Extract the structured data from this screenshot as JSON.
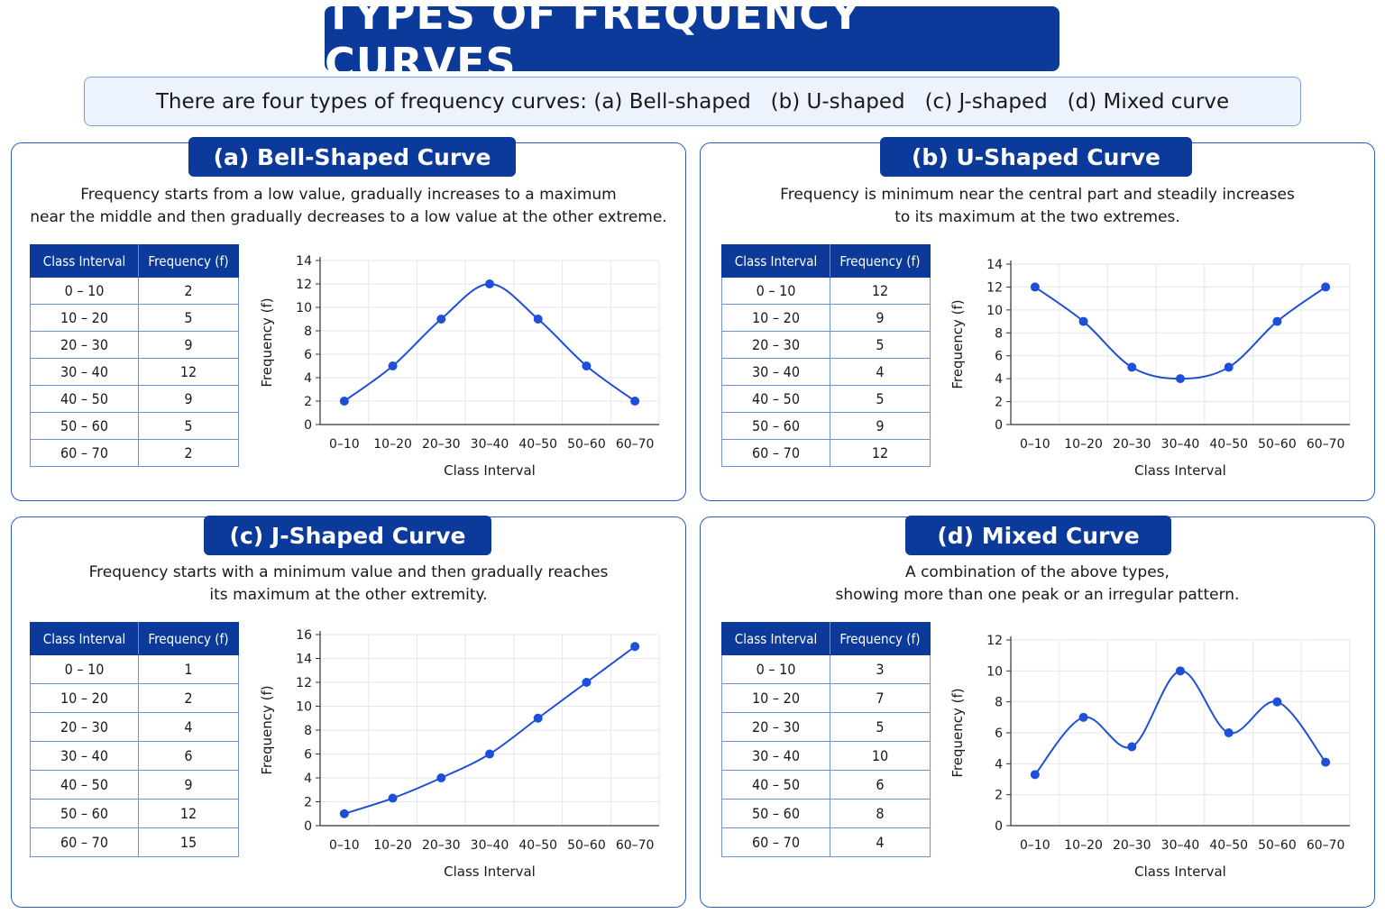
{
  "title": "TYPES OF FREQUENCY CURVES",
  "intro": "There are four types of frequency curves: (a) Bell-shaped   (b) U-shaped   (c) J-shaped   (d) Mixed curve",
  "colors": {
    "accent": "#0b3a9a",
    "line": "#1d4fd8",
    "border": "#2a5bc4",
    "grid": "#e3e6ec"
  },
  "table_headers": {
    "interval": "Class Interval",
    "frequency": "Frequency (f)"
  },
  "table_intervals": [
    "0 – 10",
    "10 – 20",
    "20 – 30",
    "30 – 40",
    "40 – 50",
    "50 – 60",
    "60 – 70"
  ],
  "panels": [
    {
      "title": "(a)  Bell-Shaped Curve",
      "desc": [
        "Frequency starts from a low value, gradually increases to a maximum",
        "near the middle and then gradually decreases to a low value at the other extreme."
      ],
      "frequencies": [
        "2",
        "5",
        "9",
        "12",
        "9",
        "5",
        "2"
      ]
    },
    {
      "title": "(b)  U-Shaped Curve",
      "desc": [
        "Frequency is minimum near the central part and steadily increases",
        "to its maximum at the two extremes."
      ],
      "frequencies": [
        "12",
        "9",
        "5",
        "4",
        "5",
        "9",
        "12"
      ]
    },
    {
      "title": "(c)  J-Shaped Curve",
      "desc": [
        "Frequency starts with a minimum value and then gradually reaches",
        "its maximum at the other extremity."
      ],
      "frequencies": [
        "1",
        "2",
        "4",
        "6",
        "9",
        "12",
        "15"
      ]
    },
    {
      "title": "(d)  Mixed Curve",
      "desc": [
        "A combination of the above types,",
        "showing more than one peak or an irregular pattern."
      ],
      "frequencies": [
        "3",
        "7",
        "5",
        "10",
        "6",
        "8",
        "4"
      ]
    }
  ],
  "chart_data": [
    {
      "type": "line",
      "categories": [
        "0–10",
        "10–20",
        "20–30",
        "30–40",
        "40–50",
        "50–60",
        "60–70"
      ],
      "values": [
        2,
        5,
        9,
        12,
        9,
        5,
        2
      ],
      "xlabel": "Class Interval",
      "ylabel": "Frequency (f)",
      "ylim": [
        0,
        14
      ],
      "yticks": [
        0,
        2,
        4,
        6,
        8,
        10,
        12,
        14
      ],
      "grid": true
    },
    {
      "type": "line",
      "categories": [
        "0–10",
        "10–20",
        "20–30",
        "30–40",
        "40–50",
        "50–60",
        "60–70"
      ],
      "values": [
        12,
        9,
        5,
        4,
        5,
        9,
        12
      ],
      "xlabel": "Class Interval",
      "ylabel": "Frequency (f)",
      "ylim": [
        0,
        14
      ],
      "yticks": [
        0,
        2,
        4,
        6,
        8,
        10,
        12,
        14
      ],
      "grid": true
    },
    {
      "type": "line",
      "categories": [
        "0–10",
        "10–20",
        "20–30",
        "30–40",
        "40–50",
        "50–60",
        "60–70"
      ],
      "values": [
        1,
        2.3,
        4,
        6,
        9,
        12,
        15
      ],
      "xlabel": "Class Interval",
      "ylabel": "Frequency (f)",
      "ylim": [
        0,
        16
      ],
      "yticks": [
        0,
        2,
        4,
        6,
        8,
        10,
        12,
        14,
        16
      ],
      "grid": true
    },
    {
      "type": "line",
      "categories": [
        "0–10",
        "10–20",
        "20–30",
        "30–40",
        "40–50",
        "50–60",
        "60–70"
      ],
      "values": [
        3.3,
        7,
        5.1,
        10,
        6,
        8,
        4.1
      ],
      "xlabel": "Class Interval",
      "ylabel": "Frequency (f)",
      "ylim": [
        0,
        12
      ],
      "yticks": [
        0,
        2,
        4,
        6,
        8,
        10,
        12
      ],
      "grid": true
    }
  ]
}
